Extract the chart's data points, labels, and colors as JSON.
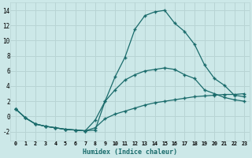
{
  "xlabel": "Humidex (Indice chaleur)",
  "bg_color": "#cce8e8",
  "grid_color": "#b8d4d4",
  "line_color": "#1a6b6b",
  "xlim": [
    -0.5,
    23.5
  ],
  "ylim": [
    -3.2,
    15.0
  ],
  "xticks": [
    0,
    1,
    2,
    3,
    4,
    5,
    6,
    7,
    8,
    9,
    10,
    11,
    12,
    13,
    14,
    15,
    16,
    17,
    18,
    19,
    20,
    21,
    22,
    23
  ],
  "yticks": [
    -2,
    0,
    2,
    4,
    6,
    8,
    10,
    12,
    14
  ],
  "curve1_x": [
    0,
    1,
    2,
    3,
    4,
    5,
    6,
    7,
    8,
    9,
    10,
    11,
    12,
    13,
    14,
    15,
    16,
    17,
    18,
    19,
    20,
    21,
    22,
    23
  ],
  "curve1_y": [
    1.0,
    -0.2,
    -1.0,
    -1.3,
    -1.5,
    -1.7,
    -1.8,
    -1.9,
    -1.8,
    2.0,
    5.2,
    7.8,
    11.5,
    13.3,
    13.8,
    14.0,
    12.3,
    11.2,
    9.5,
    6.8,
    5.0,
    4.1,
    2.8,
    2.6
  ],
  "curve2_x": [
    0,
    1,
    2,
    3,
    4,
    5,
    6,
    7,
    8,
    9,
    10,
    11,
    12,
    13,
    14,
    15,
    16,
    17,
    18,
    19,
    20,
    21,
    22,
    23
  ],
  "curve2_y": [
    1.0,
    -0.2,
    -1.0,
    -1.3,
    -1.5,
    -1.7,
    -1.8,
    -1.9,
    -0.5,
    2.0,
    3.5,
    4.8,
    5.5,
    6.0,
    6.2,
    6.4,
    6.2,
    5.5,
    5.0,
    3.5,
    3.0,
    2.5,
    2.2,
    2.0
  ],
  "curve3_x": [
    0,
    1,
    2,
    3,
    4,
    5,
    6,
    7,
    8,
    9,
    10,
    11,
    12,
    13,
    14,
    15,
    16,
    17,
    18,
    19,
    20,
    21,
    22,
    23
  ],
  "curve3_y": [
    1.0,
    -0.2,
    -1.0,
    -1.3,
    -1.5,
    -1.7,
    -1.8,
    -1.9,
    -1.5,
    -0.3,
    0.3,
    0.7,
    1.1,
    1.5,
    1.8,
    2.0,
    2.2,
    2.4,
    2.6,
    2.7,
    2.8,
    2.9,
    2.9,
    3.0
  ]
}
